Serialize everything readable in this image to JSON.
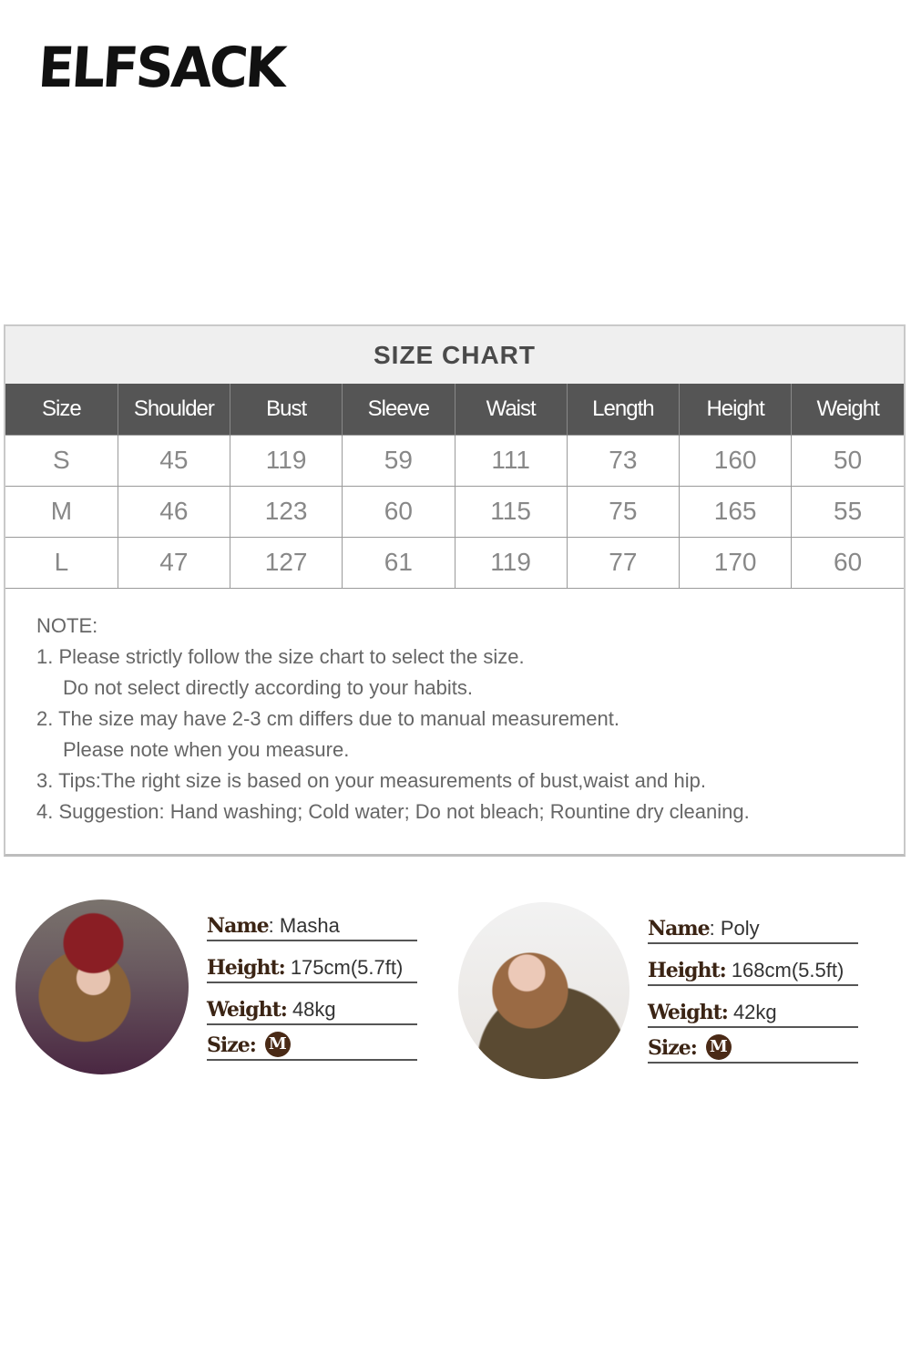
{
  "brand": {
    "logo": "ELFSACK"
  },
  "size_chart": {
    "title": "SIZE CHART",
    "headers": [
      "Size",
      "Shoulder",
      "Bust",
      "Sleeve",
      "Waist",
      "Length",
      "Height",
      "Weight"
    ],
    "rows": [
      [
        "S",
        "45",
        "119",
        "59",
        "111",
        "73",
        "160",
        "50"
      ],
      [
        "M",
        "46",
        "123",
        "60",
        "115",
        "75",
        "165",
        "55"
      ],
      [
        "L",
        "47",
        "127",
        "61",
        "119",
        "77",
        "170",
        "60"
      ]
    ]
  },
  "notes": {
    "heading": "NOTE:",
    "lines": [
      "1. Please strictly follow the size chart to select the size.",
      "Do not select directly according to your habits.",
      "2. The size may have 2-3 cm differs due to manual measurement.",
      "Please note when you measure.",
      "3. Tips:The right size is based on your measurements of bust,waist and hip.",
      "4. Suggestion: Hand washing; Cold water; Do not bleach; Rountine dry cleaning."
    ]
  },
  "labels": {
    "name": "Name",
    "height": "Height:",
    "weight": "Weight:",
    "size": "Size:"
  },
  "models": [
    {
      "name": ": Masha",
      "height": "175cm(5.7ft)",
      "weight": "48kg",
      "size": "M"
    },
    {
      "name": ": Poly",
      "height": "168cm(5.5ft)",
      "weight": "42kg",
      "size": "M"
    }
  ],
  "colors": {
    "header": "#555555",
    "label": "#3b2414",
    "badge": "#4a2a16"
  }
}
